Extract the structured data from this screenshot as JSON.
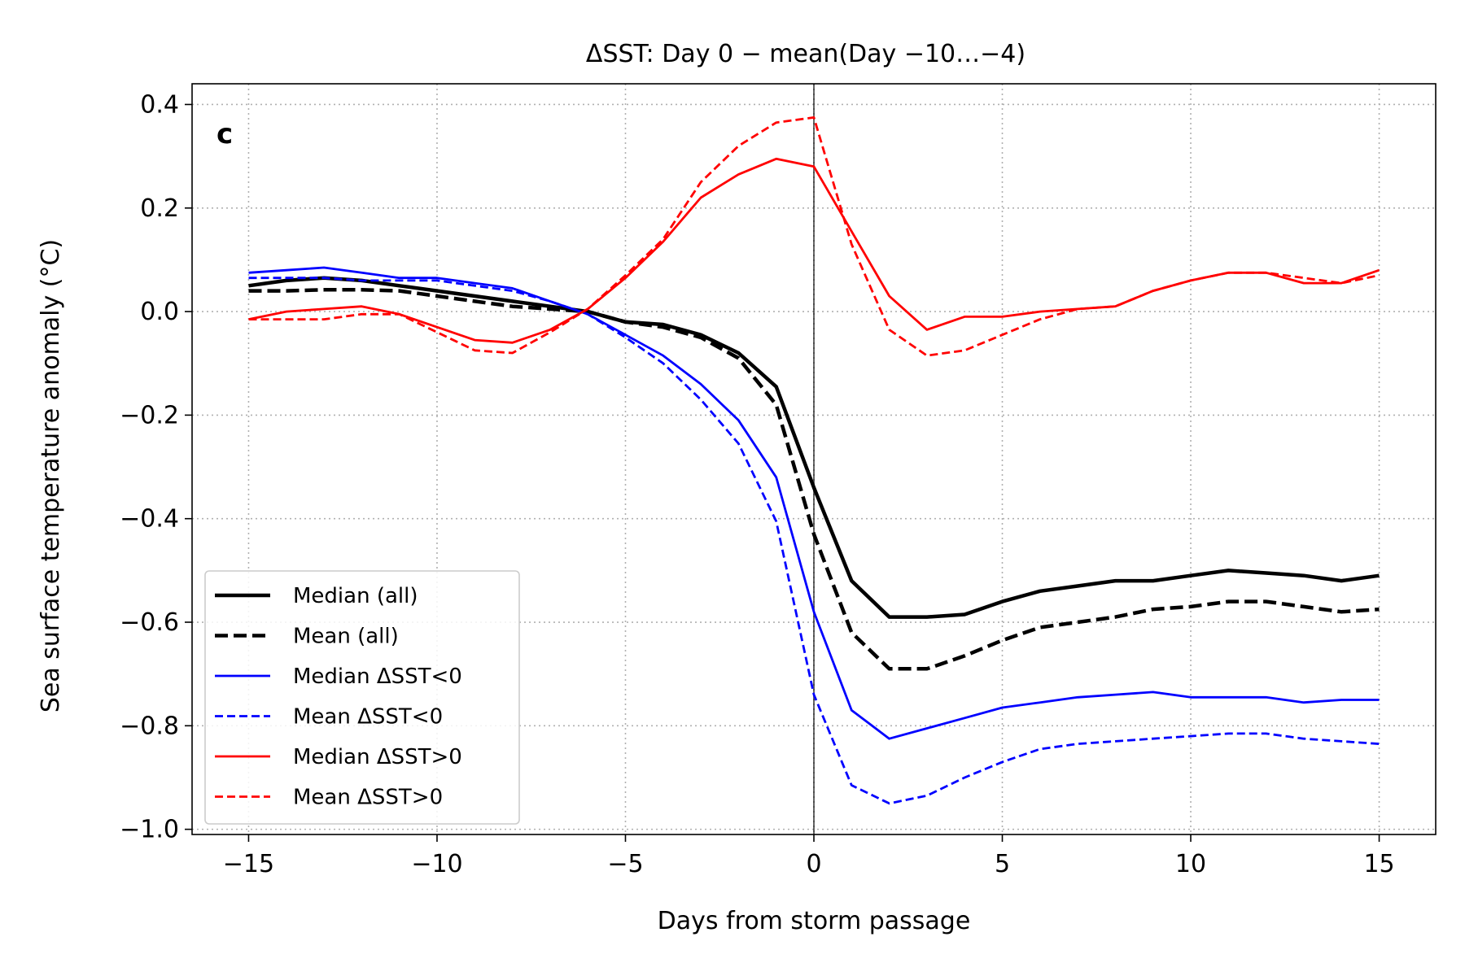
{
  "chart_data": {
    "type": "line",
    "title": "ΔSST: Day 0 − mean(Day −10…−4)",
    "xlabel": "Days from storm passage",
    "ylabel": "Sea surface temperature anomaly (°C)",
    "panel_label": "c",
    "xlim": [
      -16.5,
      16.5
    ],
    "ylim": [
      -1.01,
      0.44
    ],
    "xticks": [
      -15,
      -10,
      -5,
      0,
      5,
      10,
      15
    ],
    "xtick_labels": [
      "−15",
      "−10",
      "−5",
      "0",
      "5",
      "10",
      "15"
    ],
    "yticks": [
      0.4,
      0.2,
      0.0,
      -0.2,
      -0.4,
      -0.6,
      -0.8,
      -1.0
    ],
    "ytick_labels": [
      "0.4",
      "0.2",
      "0.0",
      "−0.2",
      "−0.4",
      "−0.6",
      "−0.8",
      "−1.0"
    ],
    "grid": true,
    "vertical_line_at": 0,
    "legend_position": "lower-left",
    "x": [
      -15,
      -14,
      -13,
      -12,
      -11,
      -10,
      -9,
      -8,
      -7,
      -6,
      -5,
      -4,
      -3,
      -2,
      -1,
      0,
      1,
      2,
      3,
      4,
      5,
      6,
      7,
      8,
      9,
      10,
      11,
      12,
      13,
      14,
      15
    ],
    "series": [
      {
        "name": "Median (all)",
        "color": "#000000",
        "style": "solid",
        "weight": "thick",
        "values": [
          0.05,
          0.06,
          0.065,
          0.06,
          0.05,
          0.04,
          0.03,
          0.02,
          0.01,
          0.0,
          -0.02,
          -0.025,
          -0.045,
          -0.08,
          -0.145,
          -0.34,
          -0.52,
          -0.59,
          -0.59,
          -0.585,
          -0.56,
          -0.54,
          -0.53,
          -0.52,
          -0.52,
          -0.51,
          -0.5,
          -0.505,
          -0.51,
          -0.52,
          -0.51
        ]
      },
      {
        "name": "Mean (all)",
        "color": "#000000",
        "style": "dashed",
        "weight": "thick",
        "values": [
          0.04,
          0.04,
          0.042,
          0.042,
          0.04,
          0.03,
          0.02,
          0.01,
          0.005,
          0.0,
          -0.02,
          -0.03,
          -0.05,
          -0.09,
          -0.18,
          -0.43,
          -0.62,
          -0.69,
          -0.69,
          -0.665,
          -0.635,
          -0.61,
          -0.6,
          -0.59,
          -0.575,
          -0.57,
          -0.56,
          -0.56,
          -0.57,
          -0.58,
          -0.575
        ]
      },
      {
        "name": "Median ΔSST<0",
        "color": "#0000ff",
        "style": "solid",
        "weight": "thin",
        "values": [
          0.075,
          0.08,
          0.085,
          0.075,
          0.065,
          0.065,
          0.055,
          0.045,
          0.02,
          -0.005,
          -0.045,
          -0.085,
          -0.14,
          -0.21,
          -0.32,
          -0.58,
          -0.77,
          -0.825,
          -0.805,
          -0.785,
          -0.765,
          -0.755,
          -0.745,
          -0.74,
          -0.735,
          -0.745,
          -0.745,
          -0.745,
          -0.755,
          -0.75,
          -0.75
        ]
      },
      {
        "name": "Mean ΔSST<0",
        "color": "#0000ff",
        "style": "dashed",
        "weight": "thin",
        "values": [
          0.065,
          0.065,
          0.065,
          0.06,
          0.06,
          0.06,
          0.05,
          0.04,
          0.02,
          -0.005,
          -0.05,
          -0.1,
          -0.17,
          -0.255,
          -0.405,
          -0.74,
          -0.915,
          -0.95,
          -0.935,
          -0.9,
          -0.87,
          -0.845,
          -0.835,
          -0.83,
          -0.825,
          -0.82,
          -0.815,
          -0.815,
          -0.825,
          -0.83,
          -0.835
        ]
      },
      {
        "name": "Median ΔSST>0",
        "color": "#ff0000",
        "style": "solid",
        "weight": "thin",
        "values": [
          -0.015,
          0.0,
          0.005,
          0.01,
          -0.005,
          -0.03,
          -0.055,
          -0.06,
          -0.035,
          0.005,
          0.065,
          0.135,
          0.22,
          0.265,
          0.295,
          0.28,
          0.155,
          0.03,
          -0.035,
          -0.01,
          -0.01,
          0.0,
          0.005,
          0.01,
          0.04,
          0.06,
          0.075,
          0.075,
          0.055,
          0.055,
          0.08
        ]
      },
      {
        "name": "Mean ΔSST>0",
        "color": "#ff0000",
        "style": "dashed",
        "weight": "thin",
        "values": [
          -0.015,
          -0.015,
          -0.015,
          -0.005,
          -0.005,
          -0.04,
          -0.075,
          -0.08,
          -0.04,
          0.005,
          0.07,
          0.14,
          0.25,
          0.32,
          0.365,
          0.375,
          0.13,
          -0.035,
          -0.085,
          -0.075,
          -0.045,
          -0.015,
          0.005,
          0.01,
          0.04,
          0.06,
          0.075,
          0.075,
          0.065,
          0.055,
          0.07
        ]
      }
    ]
  }
}
